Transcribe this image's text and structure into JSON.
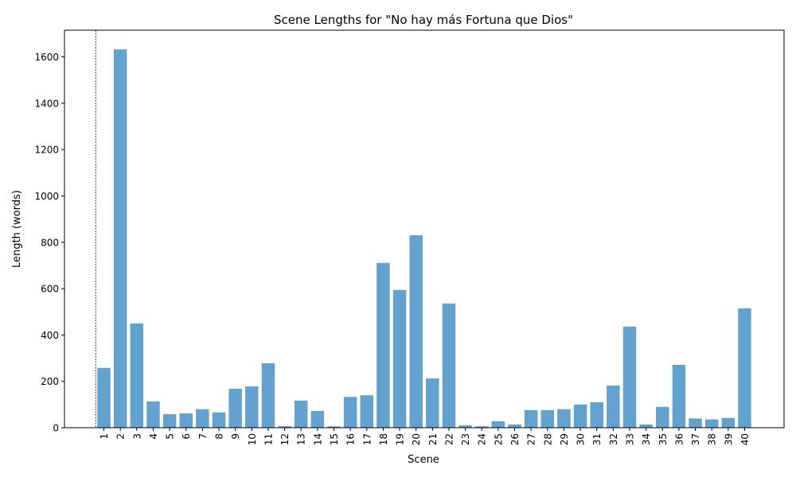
{
  "chart_data": {
    "type": "bar",
    "title": "Scene Lengths for \"No hay más Fortuna que Dios\"",
    "xlabel": "Scene",
    "ylabel": "Length (words)",
    "ylim": [
      0,
      1715
    ],
    "yticks": [
      0,
      200,
      400,
      600,
      800,
      1000,
      1200,
      1400,
      1600
    ],
    "grid": false,
    "legend": "none",
    "bar_color": "#63a1cf",
    "marker_line_at_x": 0.5,
    "categories": [
      "1",
      "2",
      "3",
      "4",
      "5",
      "6",
      "7",
      "8",
      "9",
      "10",
      "11",
      "12",
      "13",
      "14",
      "15",
      "16",
      "17",
      "18",
      "19",
      "20",
      "21",
      "22",
      "23",
      "24",
      "25",
      "26",
      "27",
      "28",
      "29",
      "30",
      "31",
      "32",
      "33",
      "34",
      "35",
      "36",
      "37",
      "38",
      "39",
      "40"
    ],
    "values": [
      258,
      1632,
      450,
      113,
      58,
      62,
      80,
      66,
      168,
      178,
      278,
      7,
      117,
      72,
      6,
      133,
      140,
      711,
      594,
      830,
      213,
      536,
      10,
      6,
      28,
      14,
      76,
      76,
      80,
      100,
      110,
      182,
      436,
      14,
      90,
      271,
      40,
      36,
      42,
      515
    ]
  }
}
